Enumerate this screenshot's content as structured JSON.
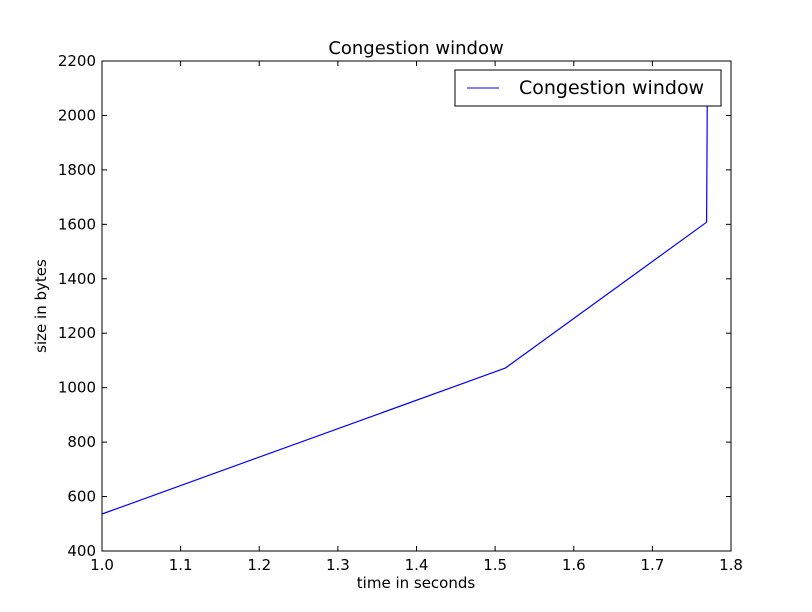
{
  "chart_data": {
    "type": "line",
    "title": "Congestion window",
    "xlabel": "time in seconds",
    "ylabel": "size in bytes",
    "xlim": [
      1.0,
      1.8
    ],
    "ylim": [
      400,
      2200
    ],
    "xticks": [
      "1.0",
      "1.1",
      "1.2",
      "1.3",
      "1.4",
      "1.5",
      "1.6",
      "1.7",
      "1.8"
    ],
    "yticks": [
      "400",
      "600",
      "800",
      "1000",
      "1200",
      "1400",
      "1600",
      "1800",
      "2000",
      "2200"
    ],
    "grid": false,
    "legend_position": "upper right",
    "series": [
      {
        "name": "Congestion window",
        "color": "#0000ff",
        "x": [
          1.0,
          1.513,
          1.769,
          1.77
        ],
        "y": [
          536,
          1072,
          1608,
          2144
        ]
      }
    ]
  }
}
